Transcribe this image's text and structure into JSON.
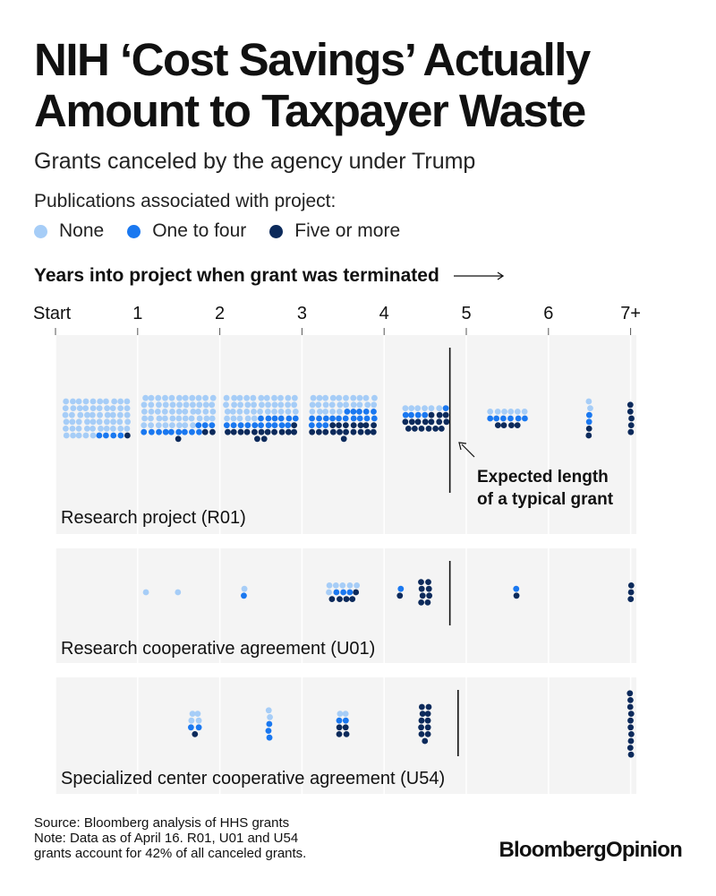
{
  "header": {
    "title": "NIH ‘Cost Savings’ Actually Amount to Taxpayer Waste",
    "subtitle": "Grants canceled by the agency under Trump"
  },
  "legend": {
    "title": "Publications associated with project:",
    "items": [
      {
        "label": "None",
        "color": "#a6cdf7"
      },
      {
        "label": "One to four",
        "color": "#1a78f0"
      },
      {
        "label": "Five or more",
        "color": "#0c2a5b"
      }
    ]
  },
  "axis": {
    "title": "Years into project when grant was terminated",
    "ticks": [
      "Start",
      "1",
      "2",
      "3",
      "4",
      "5",
      "6",
      "7+"
    ]
  },
  "annotation": {
    "line1": "Expected length",
    "line2": "of a typical grant"
  },
  "chart_data": {
    "type": "scatter",
    "x_axis": {
      "label": "Years into project when grant was terminated",
      "range": [
        0,
        7
      ],
      "tick_labels": [
        "Start",
        "1",
        "2",
        "3",
        "4",
        "5",
        "6",
        "7+"
      ]
    },
    "legend_position": "top-left",
    "categories": [
      "None",
      "One to four",
      "Five or more"
    ],
    "panels": [
      {
        "name": "Research project (R01)",
        "expected_length_years": 4.8,
        "bins": [
          {
            "x": 0.5,
            "counts": [
              55,
              4,
              1
            ]
          },
          {
            "x": 1.5,
            "counts": [
              52,
              12,
              3
            ]
          },
          {
            "x": 2.5,
            "counts": [
              38,
              16,
              14
            ]
          },
          {
            "x": 3.5,
            "counts": [
              25,
              18,
              18
            ]
          },
          {
            "x": 4.5,
            "counts": [
              6,
              5,
              16
            ]
          },
          {
            "x": 5.5,
            "counts": [
              6,
              6,
              4
            ]
          },
          {
            "x": 6.5,
            "counts": [
              2,
              2,
              2
            ]
          },
          {
            "x": 7.0,
            "counts": [
              0,
              0,
              5
            ]
          }
        ]
      },
      {
        "name": "Research cooperative agreement (U01)",
        "expected_length_years": 4.8,
        "bins": [
          {
            "x": 1.1,
            "counts": [
              1,
              0,
              0
            ]
          },
          {
            "x": 1.5,
            "counts": [
              1,
              0,
              0
            ]
          },
          {
            "x": 2.3,
            "counts": [
              1,
              1,
              0
            ]
          },
          {
            "x": 3.5,
            "counts": [
              6,
              3,
              5
            ]
          },
          {
            "x": 4.2,
            "counts": [
              0,
              1,
              1
            ]
          },
          {
            "x": 4.5,
            "counts": [
              0,
              0,
              8
            ]
          },
          {
            "x": 5.6,
            "counts": [
              0,
              1,
              1
            ]
          },
          {
            "x": 7.0,
            "counts": [
              0,
              0,
              3
            ]
          }
        ]
      },
      {
        "name": "Specialized center cooperative agreement (U54)",
        "expected_length_years": 4.9,
        "bins": [
          {
            "x": 1.7,
            "counts": [
              4,
              2,
              1
            ]
          },
          {
            "x": 2.6,
            "counts": [
              2,
              3,
              0
            ]
          },
          {
            "x": 3.5,
            "counts": [
              2,
              2,
              4
            ]
          },
          {
            "x": 4.5,
            "counts": [
              0,
              0,
              11
            ]
          },
          {
            "x": 7.0,
            "counts": [
              0,
              0,
              10
            ]
          }
        ]
      }
    ]
  },
  "footer": {
    "source": "Source: Bloomberg analysis of HHS grants",
    "note_line1": "Note: Data as of April 16. R01, U01 and U54",
    "note_line2": "grants account for 42% of all canceled grants."
  },
  "brand": "BloombergOpinion"
}
